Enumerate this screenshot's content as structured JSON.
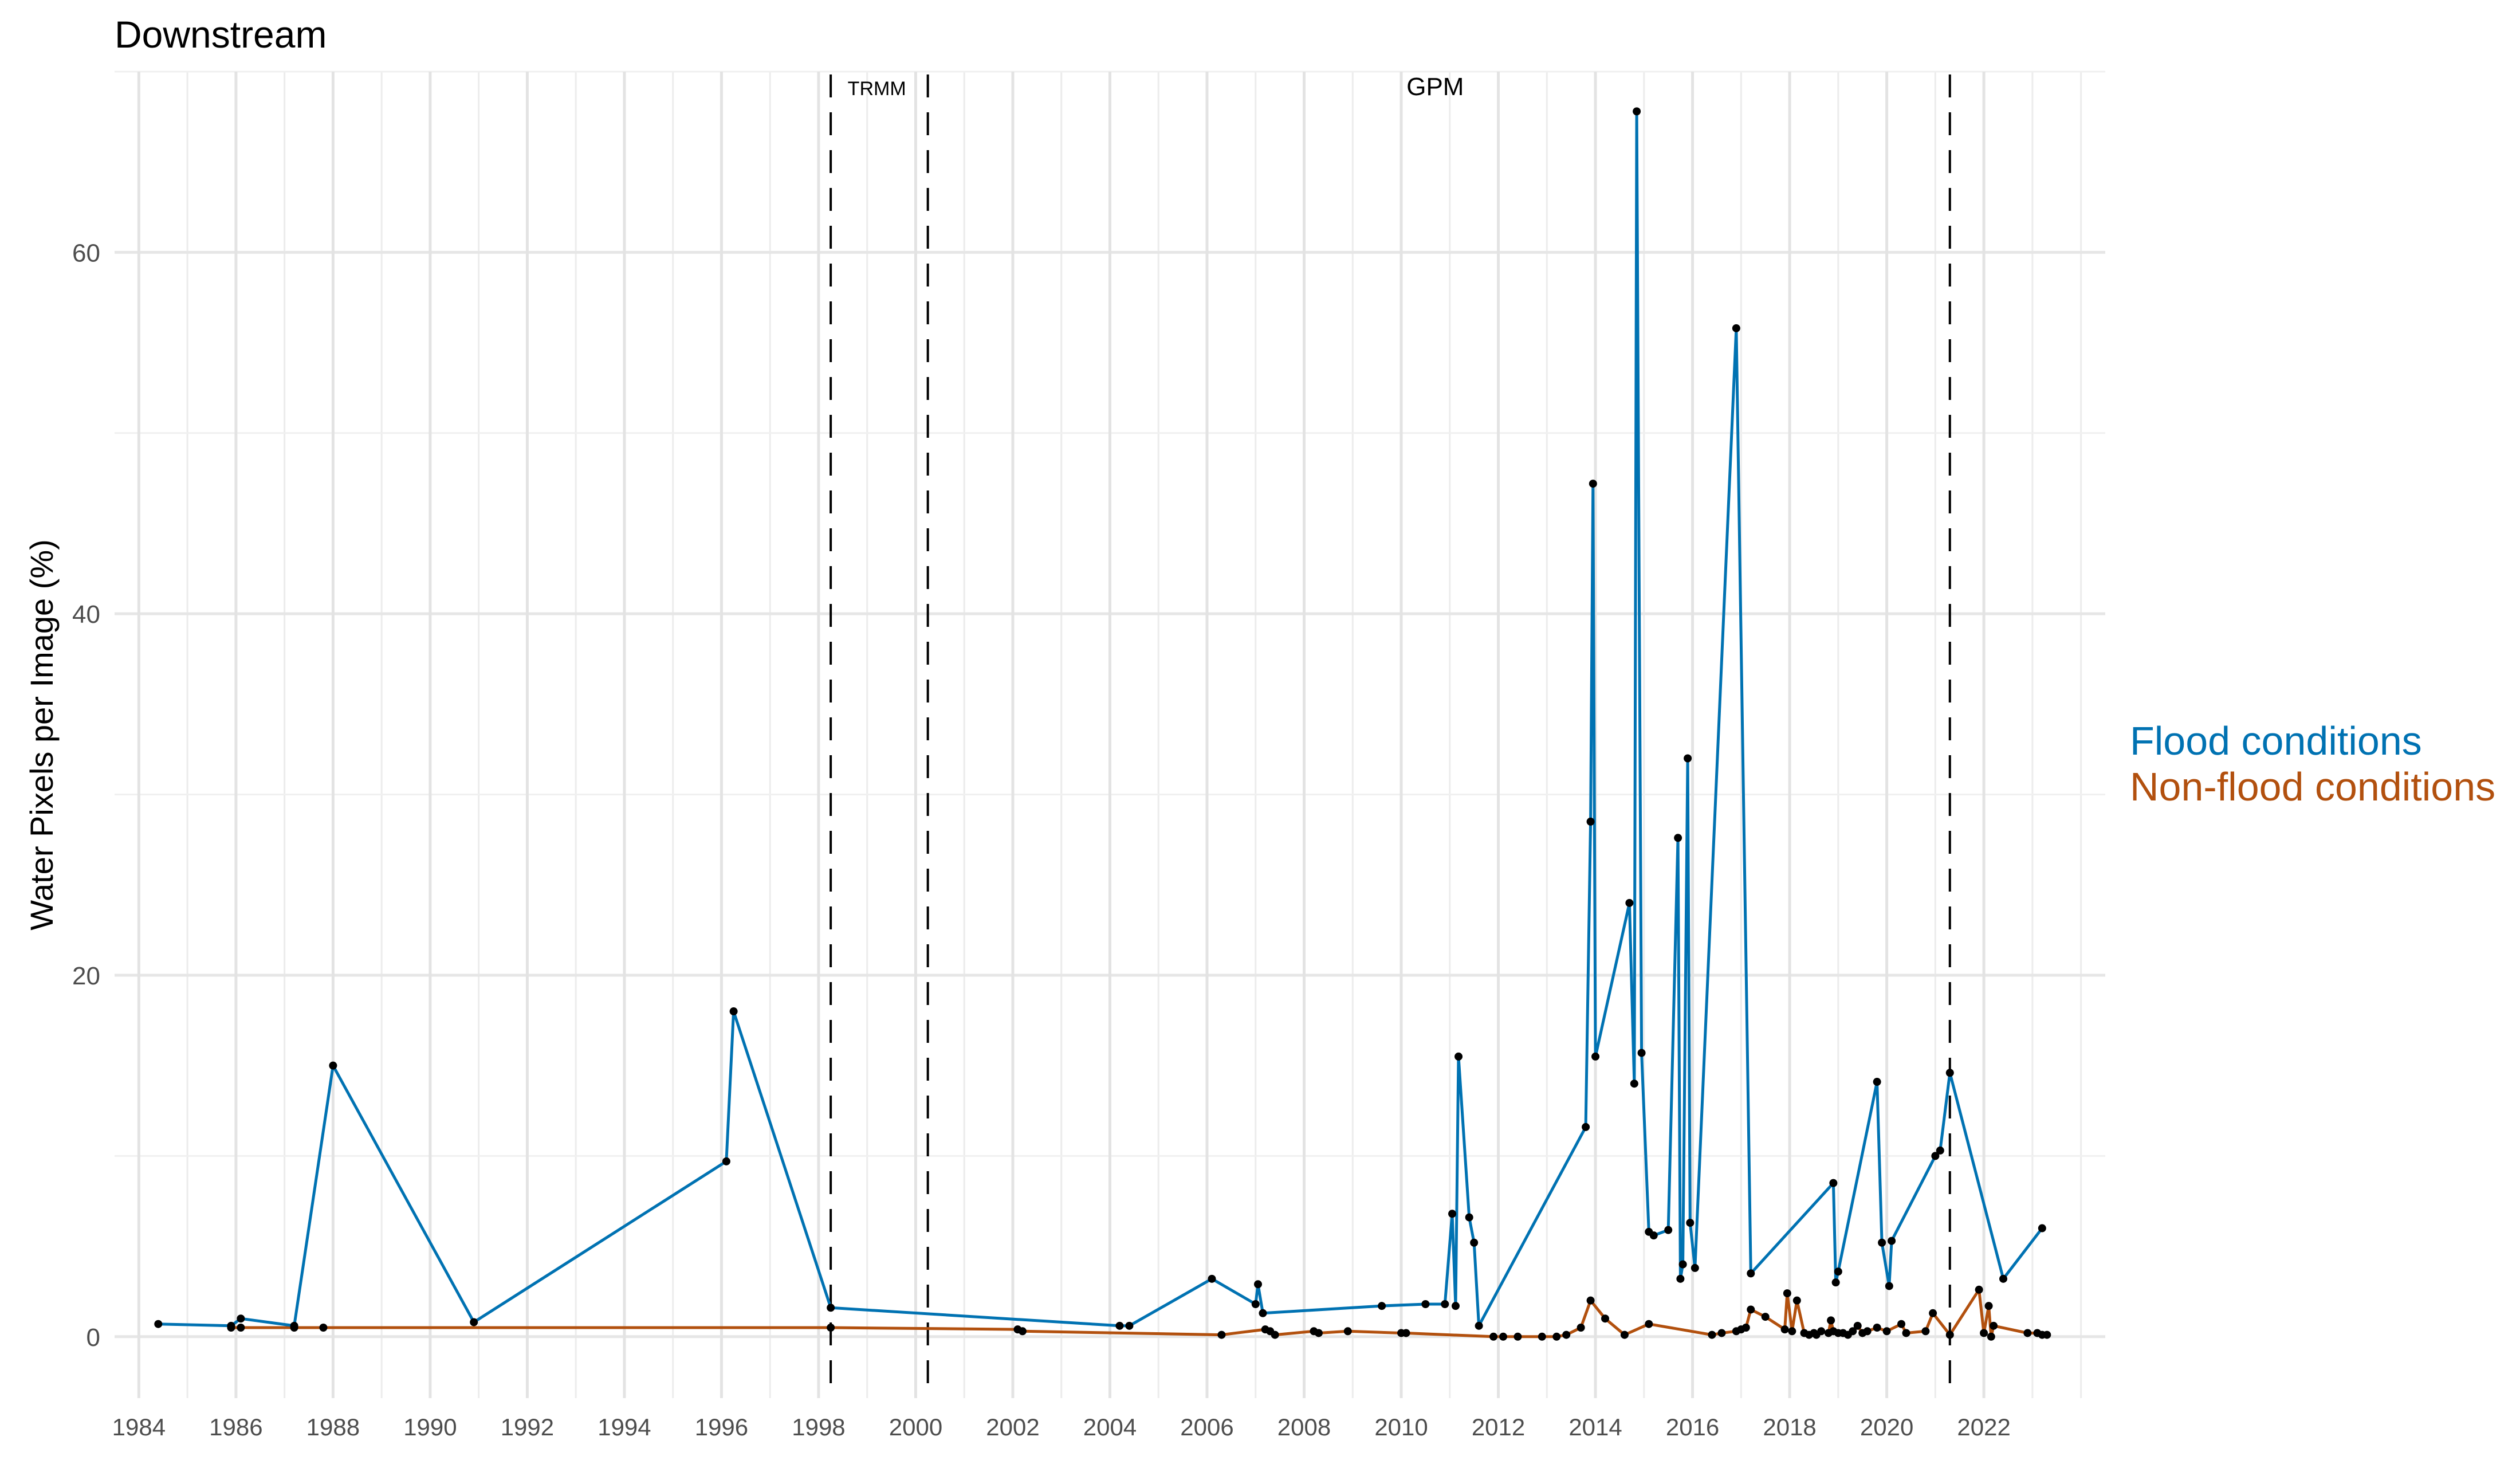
{
  "chart_data": {
    "type": "line",
    "title": "Downstream",
    "xlabel": "",
    "ylabel": "Water Pixels per Image (%)",
    "xlim": [
      1983.5,
      2024.5
    ],
    "ylim": [
      -3.4,
      70
    ],
    "grid": true,
    "x_ticks": [
      "1984",
      "1986",
      "1988",
      "1990",
      "1992",
      "1994",
      "1996",
      "1998",
      "2000",
      "2002",
      "2004",
      "2006",
      "2008",
      "2010",
      "2012",
      "2014",
      "2016",
      "2018",
      "2020",
      "2022"
    ],
    "y_ticks": [
      0,
      20,
      40,
      60
    ],
    "legend_position": "right",
    "vlines": [
      1998.25,
      2000.25,
      2021.3
    ],
    "annotations": [
      {
        "text": "TRMM",
        "x": 1999.2,
        "y": 68.7
      },
      {
        "text": "GPM",
        "x": 2010.7,
        "y": 68.7
      }
    ],
    "series": [
      {
        "name": "Flood conditions",
        "color": "#0072B2",
        "x": [
          1984.4,
          1985.9,
          1986.1,
          1987.2,
          1988.0,
          1990.9,
          1996.1,
          1996.25,
          1998.25,
          2004.2,
          2004.4,
          2006.1,
          2007.0,
          2007.05,
          2007.15,
          2009.6,
          2010.5,
          2010.9,
          2011.05,
          2011.12,
          2011.18,
          2011.4,
          2011.5,
          2011.6,
          2013.8,
          2013.9,
          2013.95,
          2014.0,
          2014.7,
          2014.8,
          2014.85,
          2014.95,
          2015.1,
          2015.2,
          2015.5,
          2015.7,
          2015.75,
          2015.8,
          2015.9,
          2015.95,
          2016.05,
          2016.9,
          2017.2,
          2018.9,
          2018.95,
          2019.0,
          2019.8,
          2019.9,
          2020.05,
          2020.1,
          2021.0,
          2021.1,
          2021.3,
          2022.4,
          2023.2
        ],
        "values": [
          0.7,
          0.6,
          1.0,
          0.6,
          15.0,
          0.8,
          9.7,
          18.0,
          1.6,
          0.6,
          0.6,
          3.2,
          1.8,
          2.9,
          1.3,
          1.7,
          1.8,
          1.8,
          6.8,
          1.7,
          15.5,
          6.6,
          5.2,
          0.6,
          11.6,
          28.5,
          47.2,
          15.5,
          24.0,
          14.0,
          67.8,
          15.7,
          5.8,
          5.6,
          5.9,
          27.6,
          3.2,
          4.0,
          32.0,
          6.3,
          3.8,
          55.8,
          3.5,
          8.5,
          3.0,
          3.6,
          14.1,
          5.2,
          2.8,
          5.3,
          10.0,
          10.3,
          14.6,
          3.2,
          6.0
        ]
      },
      {
        "name": "Non-flood conditions",
        "color": "#B2500E",
        "x": [
          1985.9,
          1986.1,
          1987.2,
          1987.8,
          1998.25,
          2002.1,
          2002.2,
          2006.3,
          2007.2,
          2007.3,
          2007.4,
          2008.2,
          2008.3,
          2008.9,
          2010.0,
          2010.1,
          2011.9,
          2012.1,
          2012.4,
          2012.9,
          2013.2,
          2013.4,
          2013.7,
          2013.9,
          2014.2,
          2014.6,
          2015.1,
          2016.4,
          2016.6,
          2016.9,
          2017.0,
          2017.1,
          2017.2,
          2017.5,
          2017.9,
          2017.95,
          2018.05,
          2018.15,
          2018.3,
          2018.4,
          2018.5,
          2018.55,
          2018.65,
          2018.8,
          2018.85,
          2018.9,
          2019.0,
          2019.1,
          2019.2,
          2019.3,
          2019.4,
          2019.5,
          2019.6,
          2019.8,
          2020.0,
          2020.3,
          2020.4,
          2020.8,
          2020.95,
          2021.3,
          2021.9,
          2022.0,
          2022.1,
          2022.15,
          2022.2,
          2022.9,
          2023.1,
          2023.2,
          2023.3
        ],
        "values": [
          0.5,
          0.5,
          0.5,
          0.5,
          0.5,
          0.4,
          0.3,
          0.1,
          0.4,
          0.3,
          0.1,
          0.3,
          0.2,
          0.3,
          0.2,
          0.2,
          0.0,
          0.0,
          0.0,
          0.0,
          0.0,
          0.1,
          0.5,
          2.0,
          1.0,
          0.1,
          0.7,
          0.1,
          0.2,
          0.3,
          0.4,
          0.5,
          1.5,
          1.1,
          0.4,
          2.4,
          0.3,
          2.0,
          0.2,
          0.1,
          0.2,
          0.1,
          0.3,
          0.2,
          0.9,
          0.3,
          0.2,
          0.2,
          0.1,
          0.3,
          0.6,
          0.2,
          0.3,
          0.5,
          0.3,
          0.7,
          0.2,
          0.3,
          1.3,
          0.1,
          2.6,
          0.2,
          1.7,
          0.0,
          0.6,
          0.2,
          0.2,
          0.1,
          0.1
        ]
      }
    ]
  }
}
